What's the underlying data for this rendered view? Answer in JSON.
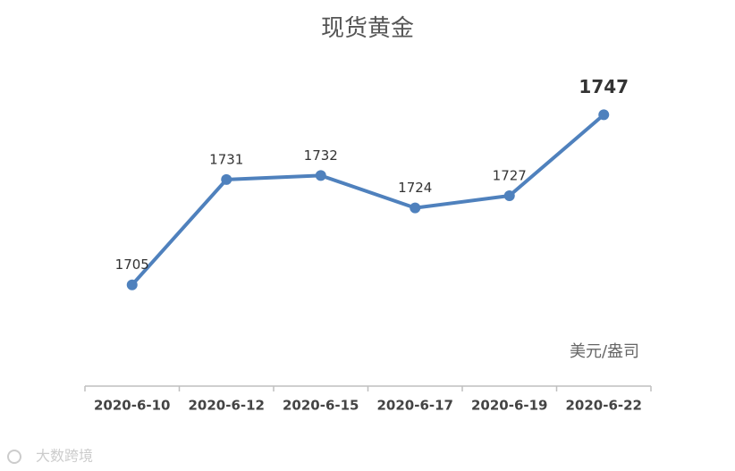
{
  "chart_data": {
    "type": "line",
    "title": "现货黄金",
    "categories": [
      "2020-6-10",
      "2020-6-12",
      "2020-6-15",
      "2020-6-17",
      "2020-6-19",
      "2020-6-22"
    ],
    "series": [
      {
        "name": "现货黄金",
        "color": "#4f81bd",
        "values": [
          1705,
          1731,
          1732,
          1724,
          1727,
          1747
        ]
      }
    ],
    "ylim": [
      1680,
      1760
    ],
    "unit_label": "美元/盎司",
    "watermark": "大数跨境"
  }
}
